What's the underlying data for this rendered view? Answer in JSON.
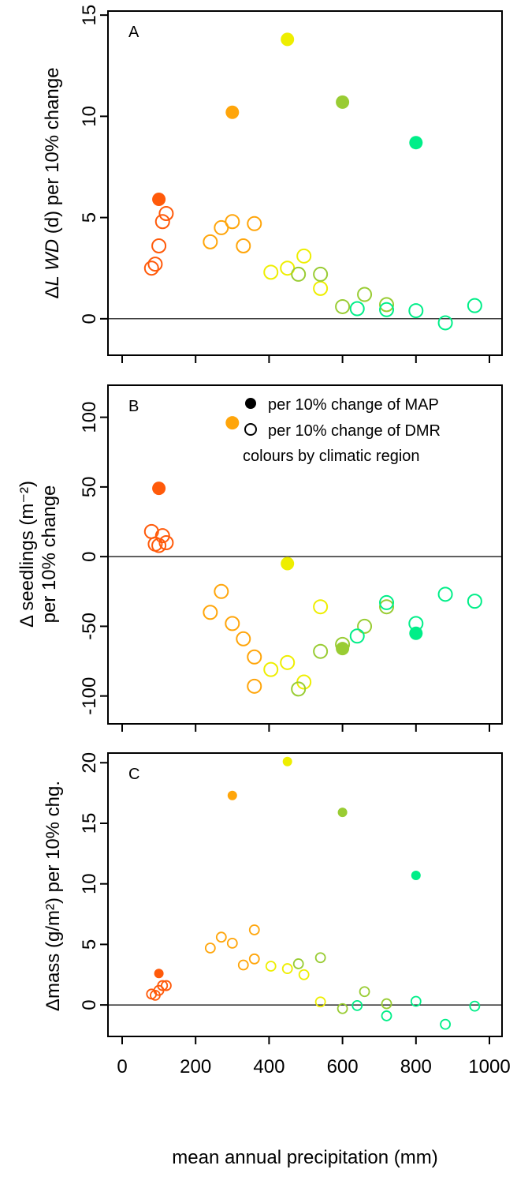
{
  "figure": {
    "xlabel": "mean annual precipitation (mm)",
    "x_tick_labels": [
      "0",
      "200",
      "400",
      "600",
      "800",
      "1000"
    ]
  },
  "legend": {
    "filled_label": "per 10% change of MAP",
    "open_label": "per 10% change of DMR",
    "colour_note": "colours by climatic region"
  },
  "colors": {
    "region_100": "#FF5A0A",
    "region_300": "#FFA50A",
    "region_450": "#EEEE00",
    "region_600": "#99CC33",
    "region_800": "#00EE88"
  },
  "chart_data": [
    {
      "type": "scatter",
      "panel_label": "A",
      "ylabel_prefix": "Δ",
      "ylabel_italic": "L WD",
      "ylabel_suffix": " (d) per 10% change",
      "xlim": [
        0,
        1000
      ],
      "ylim": [
        -1.8,
        15.2
      ],
      "y_ticks": [
        0,
        5,
        10,
        15
      ],
      "y_tick_labels": [
        "0",
        "5",
        "10",
        "15"
      ],
      "reference_line_y": 0,
      "marker_size": "large",
      "series": [
        {
          "marker": "filled",
          "points": [
            {
              "x": 100,
              "y": 5.9,
              "color": "#FF5A0A"
            },
            {
              "x": 300,
              "y": 10.2,
              "color": "#FFA50A"
            },
            {
              "x": 450,
              "y": 13.8,
              "color": "#EEEE00"
            },
            {
              "x": 600,
              "y": 10.7,
              "color": "#99CC33"
            },
            {
              "x": 800,
              "y": 8.7,
              "color": "#00EE88"
            }
          ]
        },
        {
          "marker": "open",
          "points": [
            {
              "x": 80,
              "y": 2.5,
              "color": "#FF5A0A"
            },
            {
              "x": 90,
              "y": 2.7,
              "color": "#FF5A0A"
            },
            {
              "x": 100,
              "y": 3.6,
              "color": "#FF5A0A"
            },
            {
              "x": 110,
              "y": 4.8,
              "color": "#FF5A0A"
            },
            {
              "x": 120,
              "y": 5.2,
              "color": "#FF5A0A"
            },
            {
              "x": 240,
              "y": 3.8,
              "color": "#FFA50A"
            },
            {
              "x": 270,
              "y": 4.5,
              "color": "#FFA50A"
            },
            {
              "x": 300,
              "y": 4.8,
              "color": "#FFA50A"
            },
            {
              "x": 330,
              "y": 3.6,
              "color": "#FFA50A"
            },
            {
              "x": 360,
              "y": 4.7,
              "color": "#FFA50A"
            },
            {
              "x": 405,
              "y": 2.3,
              "color": "#EEEE00"
            },
            {
              "x": 450,
              "y": 2.5,
              "color": "#EEEE00"
            },
            {
              "x": 495,
              "y": 3.1,
              "color": "#EEEE00"
            },
            {
              "x": 540,
              "y": 1.5,
              "color": "#EEEE00"
            },
            {
              "x": 480,
              "y": 2.2,
              "color": "#99CC33"
            },
            {
              "x": 540,
              "y": 2.2,
              "color": "#99CC33"
            },
            {
              "x": 600,
              "y": 0.6,
              "color": "#99CC33"
            },
            {
              "x": 660,
              "y": 1.2,
              "color": "#99CC33"
            },
            {
              "x": 720,
              "y": 0.7,
              "color": "#99CC33"
            },
            {
              "x": 640,
              "y": 0.5,
              "color": "#00EE88"
            },
            {
              "x": 720,
              "y": 0.45,
              "color": "#00EE88"
            },
            {
              "x": 800,
              "y": 0.4,
              "color": "#00EE88"
            },
            {
              "x": 880,
              "y": -0.2,
              "color": "#00EE88"
            },
            {
              "x": 960,
              "y": 0.65,
              "color": "#00EE88"
            }
          ]
        }
      ]
    },
    {
      "type": "scatter",
      "panel_label": "B",
      "ylabel_line1": "Δ seedlings (m⁻²)",
      "ylabel_line2": "per 10% change",
      "xlim": [
        0,
        1000
      ],
      "ylim": [
        -120,
        123
      ],
      "y_ticks": [
        -100,
        -50,
        0,
        50,
        100
      ],
      "y_tick_labels": [
        "-100",
        "-50",
        "0",
        "50",
        "100"
      ],
      "reference_line_y": 0,
      "marker_size": "large",
      "series": [
        {
          "marker": "filled",
          "points": [
            {
              "x": 100,
              "y": 49,
              "color": "#FF5A0A"
            },
            {
              "x": 300,
              "y": 96,
              "color": "#FFA50A"
            },
            {
              "x": 450,
              "y": -5,
              "color": "#EEEE00"
            },
            {
              "x": 600,
              "y": -66,
              "color": "#99CC33"
            },
            {
              "x": 800,
              "y": -55,
              "color": "#00EE88"
            }
          ]
        },
        {
          "marker": "open",
          "points": [
            {
              "x": 80,
              "y": 18,
              "color": "#FF5A0A"
            },
            {
              "x": 90,
              "y": 9,
              "color": "#FF5A0A"
            },
            {
              "x": 100,
              "y": 8,
              "color": "#FF5A0A"
            },
            {
              "x": 110,
              "y": 15,
              "color": "#FF5A0A"
            },
            {
              "x": 120,
              "y": 10,
              "color": "#FF5A0A"
            },
            {
              "x": 240,
              "y": -40,
              "color": "#FFA50A"
            },
            {
              "x": 270,
              "y": -25,
              "color": "#FFA50A"
            },
            {
              "x": 300,
              "y": -48,
              "color": "#FFA50A"
            },
            {
              "x": 330,
              "y": -59,
              "color": "#FFA50A"
            },
            {
              "x": 360,
              "y": -72,
              "color": "#FFA50A"
            },
            {
              "x": 360,
              "y": -93,
              "color": "#FFA50A"
            },
            {
              "x": 405,
              "y": -81,
              "color": "#EEEE00"
            },
            {
              "x": 450,
              "y": -76,
              "color": "#EEEE00"
            },
            {
              "x": 495,
              "y": -90,
              "color": "#EEEE00"
            },
            {
              "x": 540,
              "y": -36,
              "color": "#EEEE00"
            },
            {
              "x": 480,
              "y": -95,
              "color": "#99CC33"
            },
            {
              "x": 540,
              "y": -68,
              "color": "#99CC33"
            },
            {
              "x": 600,
              "y": -63,
              "color": "#99CC33"
            },
            {
              "x": 660,
              "y": -50,
              "color": "#99CC33"
            },
            {
              "x": 720,
              "y": -36,
              "color": "#99CC33"
            },
            {
              "x": 640,
              "y": -57,
              "color": "#00EE88"
            },
            {
              "x": 720,
              "y": -33,
              "color": "#00EE88"
            },
            {
              "x": 800,
              "y": -48,
              "color": "#00EE88"
            },
            {
              "x": 880,
              "y": -27,
              "color": "#00EE88"
            },
            {
              "x": 960,
              "y": -32,
              "color": "#00EE88"
            }
          ]
        }
      ]
    },
    {
      "type": "scatter",
      "panel_label": "C",
      "ylabel": "Δmass (g/m²) per 10% chg.",
      "xlim": [
        0,
        1000
      ],
      "ylim": [
        -2.6,
        20.8
      ],
      "y_ticks": [
        0,
        5,
        10,
        15,
        20
      ],
      "y_tick_labels": [
        "0",
        "5",
        "10",
        "15",
        "20"
      ],
      "reference_line_y": 0,
      "marker_size": "small",
      "series": [
        {
          "marker": "filled",
          "points": [
            {
              "x": 100,
              "y": 2.6,
              "color": "#FF5A0A"
            },
            {
              "x": 300,
              "y": 17.3,
              "color": "#FFA50A"
            },
            {
              "x": 450,
              "y": 20.1,
              "color": "#EEEE00"
            },
            {
              "x": 600,
              "y": 15.9,
              "color": "#99CC33"
            },
            {
              "x": 800,
              "y": 10.7,
              "color": "#00EE88"
            }
          ]
        },
        {
          "marker": "open",
          "points": [
            {
              "x": 80,
              "y": 0.9,
              "color": "#FF5A0A"
            },
            {
              "x": 90,
              "y": 0.8,
              "color": "#FF5A0A"
            },
            {
              "x": 100,
              "y": 1.2,
              "color": "#FF5A0A"
            },
            {
              "x": 110,
              "y": 1.6,
              "color": "#FF5A0A"
            },
            {
              "x": 120,
              "y": 1.6,
              "color": "#FF5A0A"
            },
            {
              "x": 240,
              "y": 4.7,
              "color": "#FFA50A"
            },
            {
              "x": 270,
              "y": 5.6,
              "color": "#FFA50A"
            },
            {
              "x": 300,
              "y": 5.1,
              "color": "#FFA50A"
            },
            {
              "x": 330,
              "y": 3.3,
              "color": "#FFA50A"
            },
            {
              "x": 360,
              "y": 3.8,
              "color": "#FFA50A"
            },
            {
              "x": 360,
              "y": 6.2,
              "color": "#FFA50A"
            },
            {
              "x": 405,
              "y": 3.2,
              "color": "#EEEE00"
            },
            {
              "x": 450,
              "y": 3.0,
              "color": "#EEEE00"
            },
            {
              "x": 495,
              "y": 2.5,
              "color": "#EEEE00"
            },
            {
              "x": 540,
              "y": 0.25,
              "color": "#EEEE00"
            },
            {
              "x": 480,
              "y": 3.4,
              "color": "#99CC33"
            },
            {
              "x": 540,
              "y": 3.9,
              "color": "#99CC33"
            },
            {
              "x": 600,
              "y": -0.3,
              "color": "#99CC33"
            },
            {
              "x": 660,
              "y": 1.1,
              "color": "#99CC33"
            },
            {
              "x": 720,
              "y": 0.1,
              "color": "#99CC33"
            },
            {
              "x": 640,
              "y": -0.05,
              "color": "#00EE88"
            },
            {
              "x": 720,
              "y": -0.9,
              "color": "#00EE88"
            },
            {
              "x": 800,
              "y": 0.3,
              "color": "#00EE88"
            },
            {
              "x": 880,
              "y": -1.6,
              "color": "#00EE88"
            },
            {
              "x": 960,
              "y": -0.1,
              "color": "#00EE88"
            }
          ]
        }
      ]
    }
  ]
}
